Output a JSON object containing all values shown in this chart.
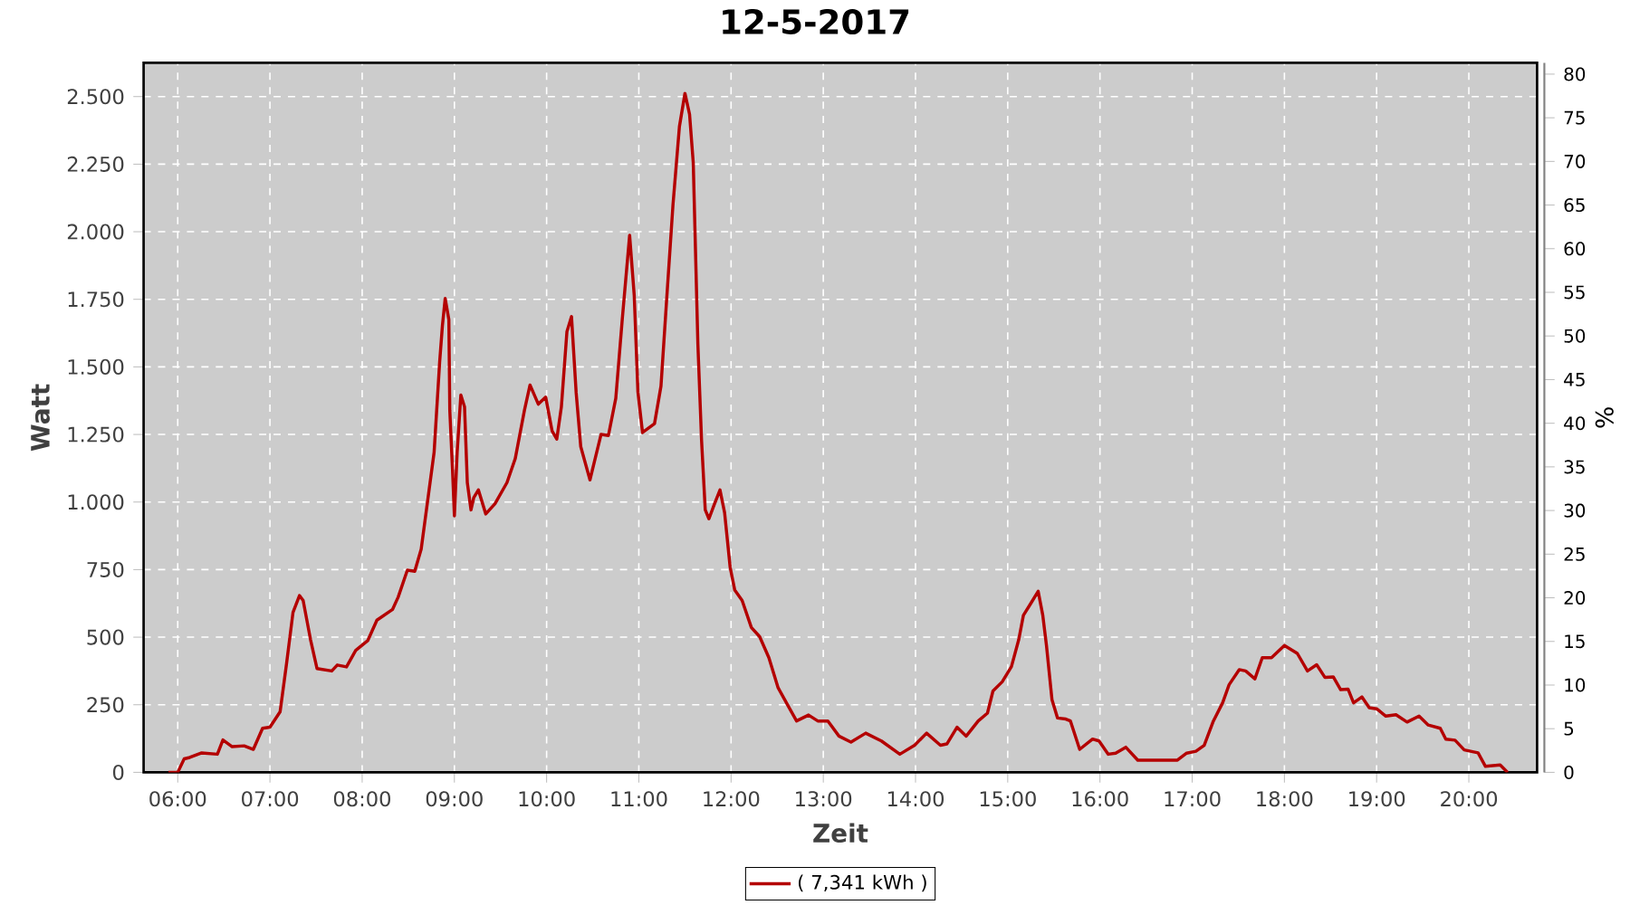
{
  "chart_data": {
    "type": "line",
    "title": "12-5-2017",
    "xlabel": "Zeit",
    "ylabel": "Watt",
    "y2label": "%",
    "xlim": [
      5.63,
      20.74
    ],
    "ylim": [
      0,
      2625
    ],
    "y2lim": [
      0,
      81.3
    ],
    "xticks": [
      {
        "value": 6,
        "label": "06:00"
      },
      {
        "value": 7,
        "label": "07:00"
      },
      {
        "value": 8,
        "label": "08:00"
      },
      {
        "value": 9,
        "label": "09:00"
      },
      {
        "value": 10,
        "label": "10:00"
      },
      {
        "value": 11,
        "label": "11:00"
      },
      {
        "value": 12,
        "label": "12:00"
      },
      {
        "value": 13,
        "label": "13:00"
      },
      {
        "value": 14,
        "label": "14:00"
      },
      {
        "value": 15,
        "label": "15:00"
      },
      {
        "value": 16,
        "label": "16:00"
      },
      {
        "value": 17,
        "label": "17:00"
      },
      {
        "value": 18,
        "label": "18:00"
      },
      {
        "value": 19,
        "label": "19:00"
      },
      {
        "value": 20,
        "label": "20:00"
      }
    ],
    "yticks": [
      0,
      250,
      500,
      750,
      {
        "value": 1000,
        "label": "1.000"
      },
      {
        "value": 1250,
        "label": "1.250"
      },
      {
        "value": 1500,
        "label": "1.500"
      },
      {
        "value": 1750,
        "label": "1.750"
      },
      {
        "value": 2000,
        "label": "2.000"
      },
      {
        "value": 2250,
        "label": "2.250"
      },
      {
        "value": 2500,
        "label": "2.500"
      }
    ],
    "y2ticks": [
      0,
      5,
      10,
      15,
      20,
      25,
      30,
      35,
      40,
      45,
      50,
      55,
      60,
      65,
      70,
      75,
      80
    ],
    "grid": true,
    "legend": "bottom",
    "marker": "none",
    "line_style": "solid",
    "series": [
      {
        "name": "( 7,341 kWh )",
        "color": "#b40000",
        "x": [
          5.9,
          6.0,
          6.07,
          6.13,
          6.26,
          6.43,
          6.49,
          6.59,
          6.72,
          6.82,
          6.92,
          7.0,
          7.11,
          7.18,
          7.25,
          7.32,
          7.36,
          7.44,
          7.51,
          7.67,
          7.73,
          7.83,
          7.93,
          8.06,
          8.16,
          8.33,
          8.39,
          8.49,
          8.57,
          8.64,
          8.71,
          8.78,
          8.84,
          8.87,
          8.9,
          8.94,
          8.95,
          8.98,
          9.0,
          9.03,
          9.07,
          9.11,
          9.14,
          9.18,
          9.21,
          9.26,
          9.34,
          9.44,
          9.57,
          9.66,
          9.76,
          9.82,
          9.91,
          9.99,
          10.06,
          10.11,
          10.16,
          10.22,
          10.27,
          10.32,
          10.37,
          10.47,
          10.59,
          10.67,
          10.75,
          10.82,
          10.9,
          10.95,
          10.99,
          11.04,
          11.17,
          11.24,
          11.3,
          11.37,
          11.44,
          11.5,
          11.55,
          11.59,
          11.64,
          11.68,
          11.72,
          11.76,
          11.82,
          11.88,
          11.93,
          11.99,
          12.04,
          12.12,
          12.22,
          12.31,
          12.41,
          12.51,
          12.61,
          12.71,
          12.84,
          12.94,
          13.05,
          13.17,
          13.3,
          13.46,
          13.63,
          13.83,
          13.99,
          14.12,
          14.27,
          14.34,
          14.45,
          14.55,
          14.68,
          14.78,
          14.84,
          14.94,
          15.04,
          15.12,
          15.17,
          15.25,
          15.33,
          15.38,
          15.42,
          15.48,
          15.54,
          15.63,
          15.68,
          15.78,
          15.92,
          15.99,
          16.09,
          16.17,
          16.28,
          16.41,
          16.84,
          16.94,
          17.04,
          17.13,
          17.23,
          17.33,
          17.4,
          17.51,
          17.58,
          17.68,
          17.76,
          17.86,
          18.0,
          18.14,
          18.25,
          18.35,
          18.44,
          18.53,
          18.61,
          18.69,
          18.75,
          18.84,
          18.92,
          19.0,
          19.1,
          19.21,
          19.33,
          19.46,
          19.56,
          19.69,
          19.75,
          19.85,
          19.95,
          20.1,
          20.18,
          20.34,
          20.42
        ],
        "values": [
          0,
          0,
          50,
          55,
          72,
          67,
          120,
          95,
          98,
          85,
          163,
          167,
          224,
          402,
          592,
          654,
          636,
          491,
          384,
          375,
          397,
          390,
          451,
          487,
          563,
          603,
          648,
          748,
          744,
          826,
          1005,
          1184,
          1518,
          1652,
          1753,
          1675,
          1340,
          1116,
          949,
          1184,
          1396,
          1352,
          1072,
          971,
          1016,
          1045,
          956,
          994,
          1072,
          1161,
          1340,
          1433,
          1362,
          1388,
          1262,
          1233,
          1352,
          1630,
          1686,
          1406,
          1205,
          1082,
          1250,
          1246,
          1384,
          1675,
          1987,
          1764,
          1407,
          1257,
          1290,
          1429,
          1741,
          2099,
          2389,
          2512,
          2434,
          2255,
          1585,
          1228,
          971,
          938,
          993,
          1045,
          960,
          759,
          674,
          636,
          536,
          502,
          424,
          313,
          251,
          190,
          212,
          190,
          190,
          134,
          112,
          145,
          116,
          67,
          100,
          145,
          100,
          105,
          167,
          134,
          190,
          219,
          301,
          335,
          391,
          492,
          581,
          625,
          670,
          581,
          469,
          268,
          201,
          197,
          190,
          85,
          123,
          116,
          67,
          71,
          93,
          45,
          45,
          71,
          78,
          100,
          190,
          257,
          324,
          380,
          375,
          346,
          424,
          424,
          469,
          440,
          375,
          398,
          351,
          353,
          306,
          308,
          257,
          279,
          239,
          235,
          208,
          213,
          186,
          208,
          175,
          163,
          123,
          119,
          83,
          72,
          22,
          27,
          0
        ]
      }
    ]
  }
}
